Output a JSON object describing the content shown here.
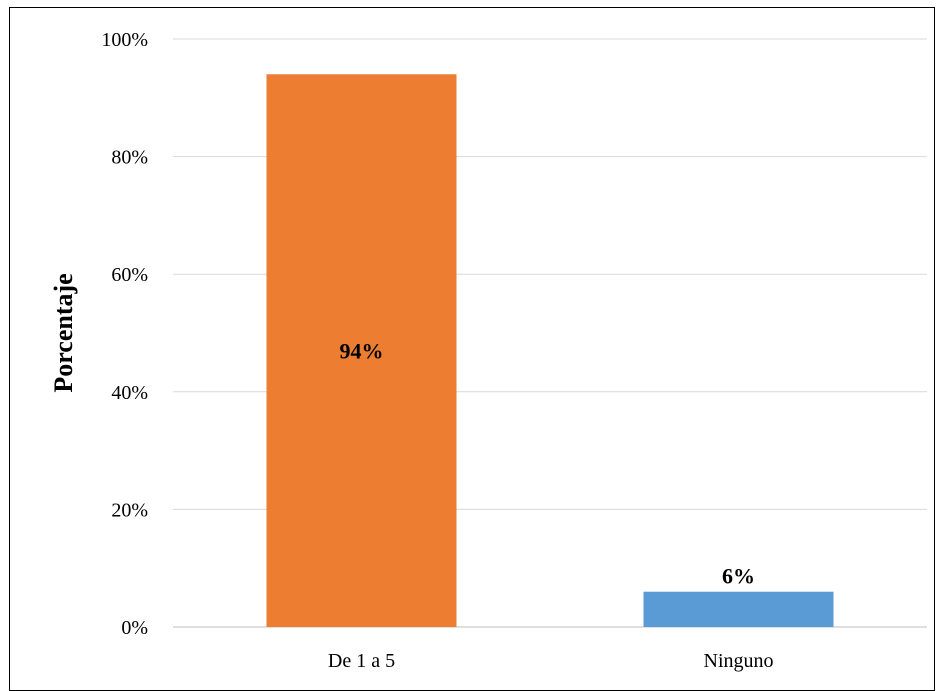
{
  "chart_data": {
    "type": "bar",
    "categories": [
      "De 1 a 5",
      "Ninguno"
    ],
    "values": [
      94,
      6
    ],
    "data_labels": [
      "94%",
      "6%"
    ],
    "bar_colors": [
      "#ED7D31",
      "#5B9BD5"
    ],
    "title": "",
    "xlabel": "",
    "ylabel": "Porcentaje",
    "ylim": [
      0,
      100
    ],
    "yticks": [
      0,
      20,
      40,
      60,
      80,
      100
    ],
    "ytick_labels": [
      "0%",
      "20%",
      "40%",
      "60%",
      "80%",
      "100%"
    ],
    "grid": true,
    "legend": "none"
  }
}
